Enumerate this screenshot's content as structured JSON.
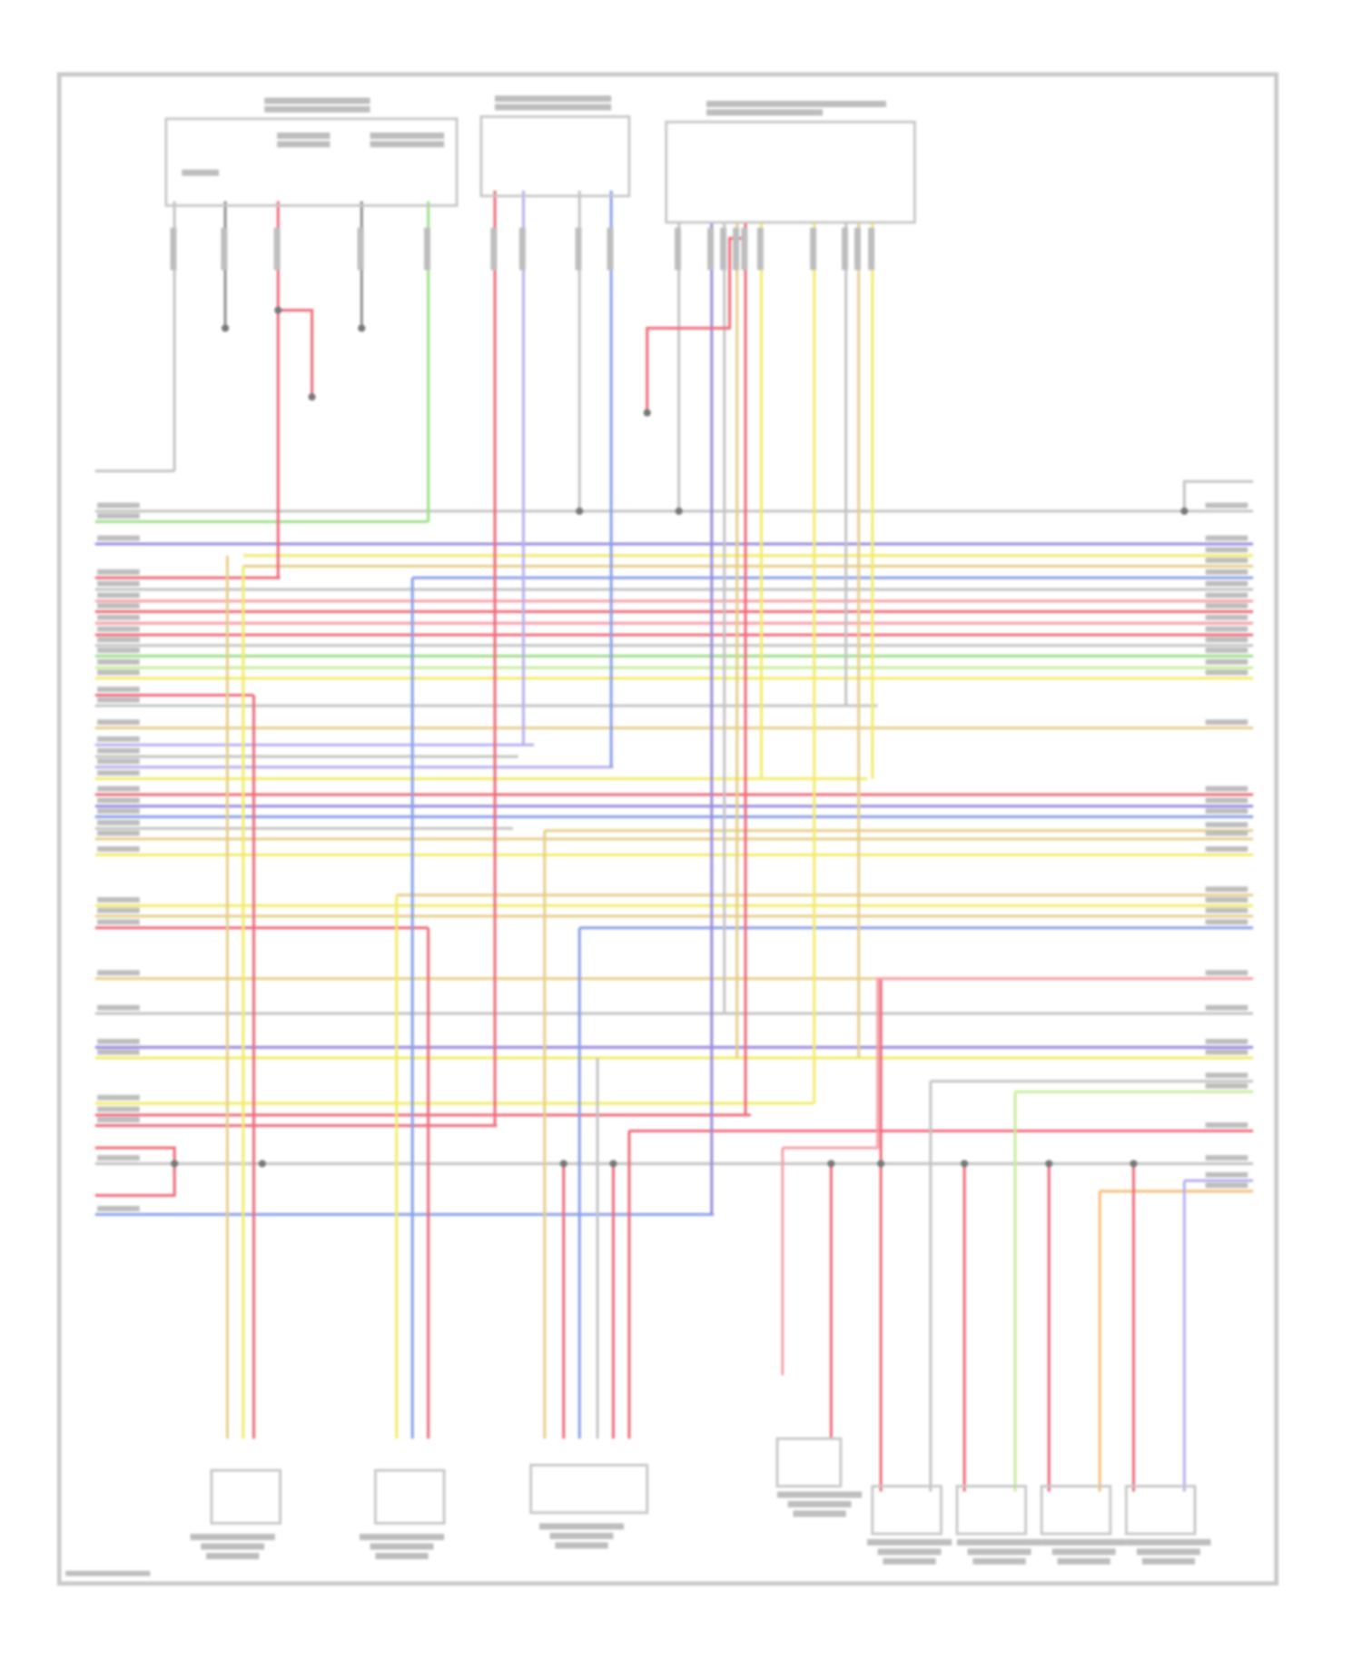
{
  "diagram": {
    "type": "wiring-diagram",
    "text_legible": false,
    "colors": {
      "frame": "#c8c8c8",
      "label": "#bdbdbd",
      "red": "#f06a7a",
      "pink": "#f5a0a8",
      "purple": "#9a8ae0",
      "blue": "#8aa0e8",
      "lavender": "#b8b0ee",
      "yellow": "#f2ec6a",
      "tan": "#e6cf8a",
      "green": "#9ee08a",
      "lightgreen": "#c8ee9a",
      "gray": "#c4c4c4",
      "orange": "#f6c07a",
      "dark": "#909090"
    }
  }
}
